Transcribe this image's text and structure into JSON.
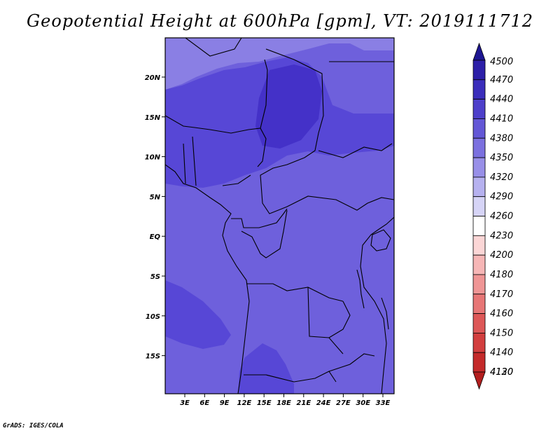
{
  "title": "Geopotential Height at 600hPa [gpm], VT: 2019111712",
  "footer": "GrADS: IGES/COLA",
  "map": {
    "lon_labels": [
      "3E",
      "6E",
      "9E",
      "12E",
      "15E",
      "18E",
      "21E",
      "24E",
      "27E",
      "30E",
      "33E"
    ],
    "lat_labels": [
      "20N",
      "15N",
      "10N",
      "5N",
      "EQ",
      "5S",
      "10S",
      "15S"
    ],
    "fill_colors": {
      "c4380": "#6e60dc",
      "c4410": "#5747d6",
      "c4440": "#4431c8",
      "c4350": "#8a7fe4"
    }
  },
  "colorbar": {
    "levels": [
      "4500",
      "4470",
      "4440",
      "4410",
      "4380",
      "4350",
      "4320",
      "4290",
      "4260",
      "4230",
      "4200",
      "4180",
      "4170",
      "4160",
      "4150",
      "4140",
      "4130",
      "4120"
    ],
    "colors": [
      "#1e1692",
      "#2c1fa8",
      "#3a2dbb",
      "#4d3fca",
      "#6357d6",
      "#7b70df",
      "#988fe8",
      "#b6b1ef",
      "#d6d4f6",
      "#ffffff",
      "#fbd6d6",
      "#f6b6b6",
      "#ef9595",
      "#e77676",
      "#dd5757",
      "#d23e3e",
      "#c42a2a",
      "#b31e1e"
    ]
  }
}
